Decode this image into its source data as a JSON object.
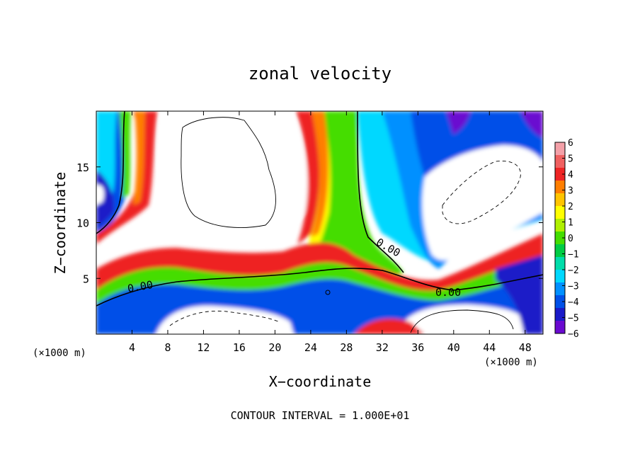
{
  "chart_data": {
    "type": "heatmap",
    "title": "zonal velocity",
    "xlabel": "X−coordinate",
    "ylabel": "Z−coordinate",
    "x_unit_left": "(×1000 m)",
    "x_unit_right": "(×1000 m)",
    "xlim": [
      0,
      50
    ],
    "ylim": [
      0,
      20
    ],
    "x_ticks": [
      4,
      8,
      12,
      16,
      20,
      24,
      28,
      32,
      36,
      40,
      44,
      48
    ],
    "x_tick_labels": [
      "4",
      "8",
      "12",
      "16",
      "20",
      "24",
      "28",
      "32",
      "36",
      "40",
      "44",
      "48"
    ],
    "y_ticks": [
      5,
      10,
      15
    ],
    "y_tick_labels": [
      "5",
      "10",
      "15"
    ],
    "colorbar": {
      "min": -6,
      "max": 6,
      "tick_values": [
        6,
        5,
        4,
        3,
        2,
        1,
        0,
        -1,
        -2,
        -3,
        -4,
        -5,
        -6
      ],
      "tick_labels": [
        "6",
        "5",
        "4",
        "3",
        "2",
        "1",
        "0",
        "−1",
        "−2",
        "−3",
        "−4",
        "−5",
        "−6"
      ],
      "colors": [
        "#f4a0a8",
        "#f06060",
        "#ee2424",
        "#ff7e00",
        "#ffc400",
        "#ffff00",
        "#b0f000",
        "#44dd00",
        "#00cc44",
        "#00ddaa",
        "#00d8ff",
        "#0090ff",
        "#0050e8",
        "#1a1ac8",
        "#6a0ad0"
      ]
    },
    "contour_labels": [
      "0.00",
      "0.00",
      "0.00"
    ],
    "contour_interval_text": "CONTOUR INTERVAL = 1.000E+01"
  }
}
